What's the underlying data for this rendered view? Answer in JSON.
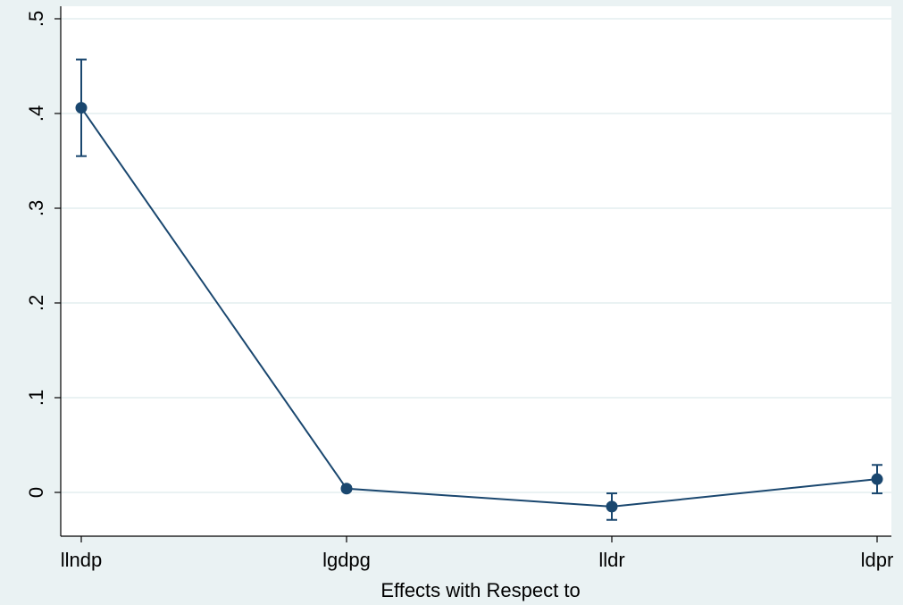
{
  "chart_data": {
    "type": "line",
    "title": "",
    "xlabel": "Effects with Respect to",
    "ylabel": "",
    "categories": [
      "llndp",
      "lgdpg",
      "lldr",
      "ldpr"
    ],
    "series": [
      {
        "values": [
          0.406,
          0.004,
          -0.015,
          0.014
        ],
        "ci_low": [
          0.355,
          0.002,
          -0.029,
          -0.001
        ],
        "ci_high": [
          0.457,
          0.006,
          -0.001,
          0.029
        ]
      }
    ],
    "ylim": [
      -0.05,
      0.5
    ],
    "yticks": [
      0,
      0.1,
      0.2,
      0.3,
      0.4,
      0.5
    ],
    "ytick_labels": [
      "0",
      ".1",
      ".2",
      ".3",
      ".4",
      ".5"
    ],
    "grid": true,
    "legend": "none",
    "colors": {
      "background": "#eaf2f3",
      "plot_area": "#ffffff",
      "grid": "#eaf2f3",
      "series": "#1a476f"
    }
  }
}
